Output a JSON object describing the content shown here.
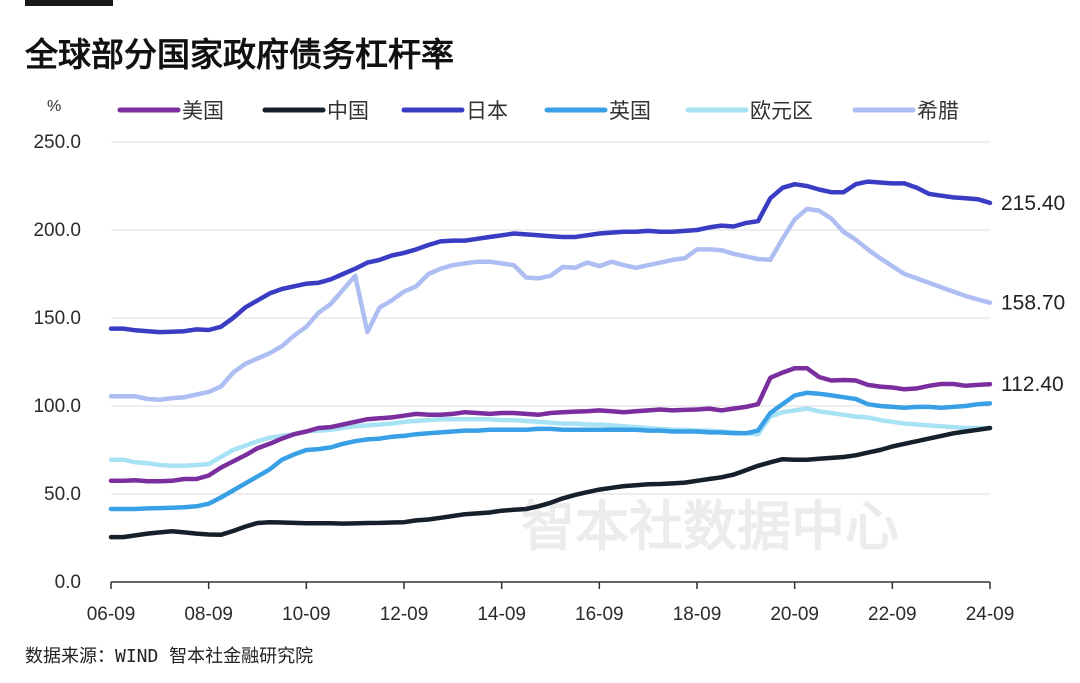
{
  "chart_data": {
    "type": "line",
    "title": "全球部分国家政府债务杠杆率",
    "ylabel": "%",
    "ylim": [
      0,
      250
    ],
    "yticks": [
      "0.0",
      "50.0",
      "100.0",
      "150.0",
      "200.0",
      "250.0"
    ],
    "xticks": [
      "06-09",
      "08-09",
      "10-09",
      "12-09",
      "14-09",
      "16-09",
      "18-09",
      "20-09",
      "22-09",
      "24-09"
    ],
    "x": [
      2006.75,
      2007.0,
      2007.25,
      2007.5,
      2007.75,
      2008.0,
      2008.25,
      2008.5,
      2008.75,
      2009.0,
      2009.25,
      2009.5,
      2009.75,
      2010.0,
      2010.25,
      2010.5,
      2010.75,
      2011.0,
      2011.25,
      2011.5,
      2011.75,
      2012.0,
      2012.25,
      2012.5,
      2012.75,
      2013.0,
      2013.25,
      2013.5,
      2013.75,
      2014.0,
      2014.25,
      2014.5,
      2014.75,
      2015.0,
      2015.25,
      2015.5,
      2015.75,
      2016.0,
      2016.25,
      2016.5,
      2016.75,
      2017.0,
      2017.25,
      2017.5,
      2017.75,
      2018.0,
      2018.25,
      2018.5,
      2018.75,
      2019.0,
      2019.25,
      2019.5,
      2019.75,
      2020.0,
      2020.25,
      2020.5,
      2020.75,
      2021.0,
      2021.25,
      2021.5,
      2021.75,
      2022.0,
      2022.25,
      2022.5,
      2022.75,
      2023.0,
      2023.25,
      2023.5,
      2023.75,
      2024.0,
      2024.25,
      2024.5,
      2024.75
    ],
    "series": [
      {
        "name": "美国",
        "color": "#7b2f9e",
        "end_label": "112.40",
        "values": [
          57.5,
          57.5,
          57.8,
          57.2,
          57.2,
          57.5,
          58.5,
          58.5,
          60.5,
          65,
          68.5,
          72,
          76,
          78.5,
          81.5,
          84,
          85.5,
          87.5,
          88,
          89.5,
          91,
          92.5,
          93,
          93.5,
          94.5,
          95.5,
          95,
          95,
          95.5,
          96.5,
          96,
          95.5,
          96,
          96,
          95.5,
          95,
          96,
          96.5,
          96.8,
          97,
          97.5,
          97,
          96.5,
          97,
          97.5,
          98,
          97.5,
          97.8,
          98,
          98.5,
          97.5,
          98.5,
          99.5,
          101,
          116,
          119,
          121.5,
          121.5,
          116.5,
          114.5,
          114.8,
          114.5,
          112,
          111,
          110.5,
          109.5,
          110,
          111.5,
          112.5,
          112.5,
          111.5,
          112,
          112.4
        ]
      },
      {
        "name": "中国",
        "color": "#16202b",
        "end_label": "",
        "values": [
          25.5,
          25.5,
          26.5,
          27.5,
          28.2,
          28.8,
          28.2,
          27.5,
          27,
          26.8,
          29,
          31.5,
          33.5,
          34,
          33.8,
          33.6,
          33.4,
          33.4,
          33.4,
          33.2,
          33.3,
          33.5,
          33.6,
          33.8,
          34,
          35,
          35.5,
          36.5,
          37.5,
          38.5,
          39,
          39.5,
          40.5,
          41,
          41.5,
          43,
          45,
          47.5,
          49.5,
          51,
          52.5,
          53.5,
          54.5,
          55,
          55.5,
          55.7,
          56,
          56.5,
          57.5,
          58.5,
          59.5,
          61,
          63.5,
          66,
          68,
          69.8,
          69.5,
          69.5,
          70,
          70.5,
          71,
          72,
          73.5,
          75,
          77,
          78.5,
          80,
          81.5,
          83,
          84.5,
          85.5,
          86.5,
          87.5
        ]
      },
      {
        "name": "日本",
        "color": "#3a3dc4",
        "end_label": "215.40",
        "values": [
          144,
          144,
          143,
          142.5,
          142,
          142.2,
          142.5,
          143.5,
          143.2,
          145,
          150,
          156,
          160,
          164,
          166.5,
          168,
          169.5,
          170,
          172,
          175,
          178,
          181.5,
          183,
          185.5,
          187,
          189,
          191.5,
          193.5,
          194,
          194,
          195,
          196,
          197,
          198,
          197.5,
          197,
          196.5,
          196,
          196,
          197,
          198,
          198.5,
          199,
          199,
          199.5,
          199,
          199,
          199.5,
          200,
          201.5,
          202.5,
          202,
          204,
          205,
          218,
          224,
          226,
          225,
          223,
          221.5,
          221.5,
          226,
          227.5,
          227,
          226.5,
          226.5,
          224,
          220.5,
          219.5,
          218.5,
          218,
          217.5,
          215.4
        ]
      },
      {
        "name": "英国",
        "color": "#3aa0e6",
        "end_label": "",
        "values": [
          41.5,
          41.5,
          41.5,
          41.8,
          42,
          42.2,
          42.5,
          43,
          44.5,
          48,
          52,
          56,
          60,
          64,
          69.5,
          72.5,
          75,
          75.5,
          76.5,
          78.5,
          80,
          81,
          81.5,
          82.5,
          83,
          84,
          84.5,
          85,
          85.5,
          86,
          86,
          86.5,
          86.5,
          86.5,
          86.5,
          87,
          87,
          86.5,
          86.5,
          86.5,
          86.5,
          86.5,
          86.5,
          86.5,
          86,
          86,
          85.5,
          85.5,
          85.5,
          85,
          85,
          84.5,
          84.5,
          86,
          96,
          101,
          106,
          107.5,
          107,
          106,
          105,
          104,
          101,
          100,
          99.5,
          99,
          99.5,
          99.5,
          99,
          99.5,
          100,
          101,
          101.5
        ]
      },
      {
        "name": "欧元区",
        "color": "#a8e2f5",
        "end_label": "",
        "values": [
          69.5,
          69.5,
          68,
          67.5,
          66.5,
          66,
          66,
          66.5,
          67,
          71,
          75,
          77.5,
          80,
          82,
          83,
          84,
          85.5,
          86,
          86.5,
          87.5,
          88.5,
          89,
          89.5,
          90,
          91,
          91.5,
          92,
          92.5,
          92.5,
          92.5,
          92.5,
          92.5,
          92,
          92,
          91.5,
          91,
          90.5,
          90,
          90,
          89.5,
          89.5,
          89,
          88.5,
          88,
          87.5,
          87,
          86.5,
          86.5,
          86,
          86,
          85.5,
          85,
          84.5,
          84,
          94,
          96.5,
          97.5,
          98.5,
          97,
          96,
          95,
          94,
          93.5,
          92,
          91,
          90,
          89.5,
          89,
          88.5,
          88,
          87.5,
          87.5,
          87.5
        ]
      },
      {
        "name": "希腊",
        "color": "#aebef2",
        "end_label": "158.70",
        "values": [
          105.5,
          105.5,
          105.5,
          104,
          103.5,
          104.5,
          105,
          106.5,
          108,
          111,
          119,
          124,
          127,
          130,
          134,
          140,
          145,
          153,
          158,
          166,
          174,
          142,
          156,
          160,
          165,
          168,
          175,
          178,
          180,
          181,
          182,
          182,
          181,
          180,
          173,
          172.5,
          174,
          179,
          178.5,
          181.5,
          179.5,
          182,
          180,
          178.5,
          180,
          181.5,
          183,
          184,
          189,
          189,
          188.5,
          186.5,
          185,
          183.5,
          183,
          195,
          206,
          212,
          211,
          206.5,
          199,
          194.5,
          189,
          184,
          179.5,
          175,
          172.5,
          170,
          167.5,
          165,
          162.5,
          160.5,
          158.7
        ]
      }
    ]
  },
  "source": "数据来源：WIND 智本社金融研究院",
  "watermark": "智本社数据中心"
}
